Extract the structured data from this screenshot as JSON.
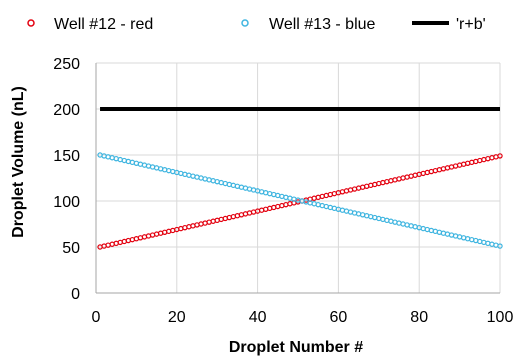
{
  "chart_data": {
    "type": "scatter",
    "title": "",
    "xlabel": "Droplet Number #",
    "ylabel": "Droplet Volume (nL)",
    "xlim": [
      0,
      100
    ],
    "ylim": [
      0,
      250
    ],
    "xticks": [
      0,
      20,
      40,
      60,
      80,
      100
    ],
    "yticks": [
      0,
      50,
      100,
      150,
      200,
      250
    ],
    "grid": true,
    "legend_position": "top",
    "series": [
      {
        "name": "Well #12 - red",
        "style": "markers",
        "color": "#e3000f",
        "x_start": 1,
        "x_end": 100,
        "y_start": 50,
        "y_end": 149
      },
      {
        "name": "Well #13 - blue",
        "style": "markers",
        "color": "#3fb5e0",
        "x_start": 1,
        "x_end": 100,
        "y_start": 150,
        "y_end": 51
      },
      {
        "name": "'r+b'",
        "style": "line",
        "color": "#000000",
        "x": [
          1,
          100
        ],
        "y": [
          200,
          200
        ]
      }
    ]
  }
}
